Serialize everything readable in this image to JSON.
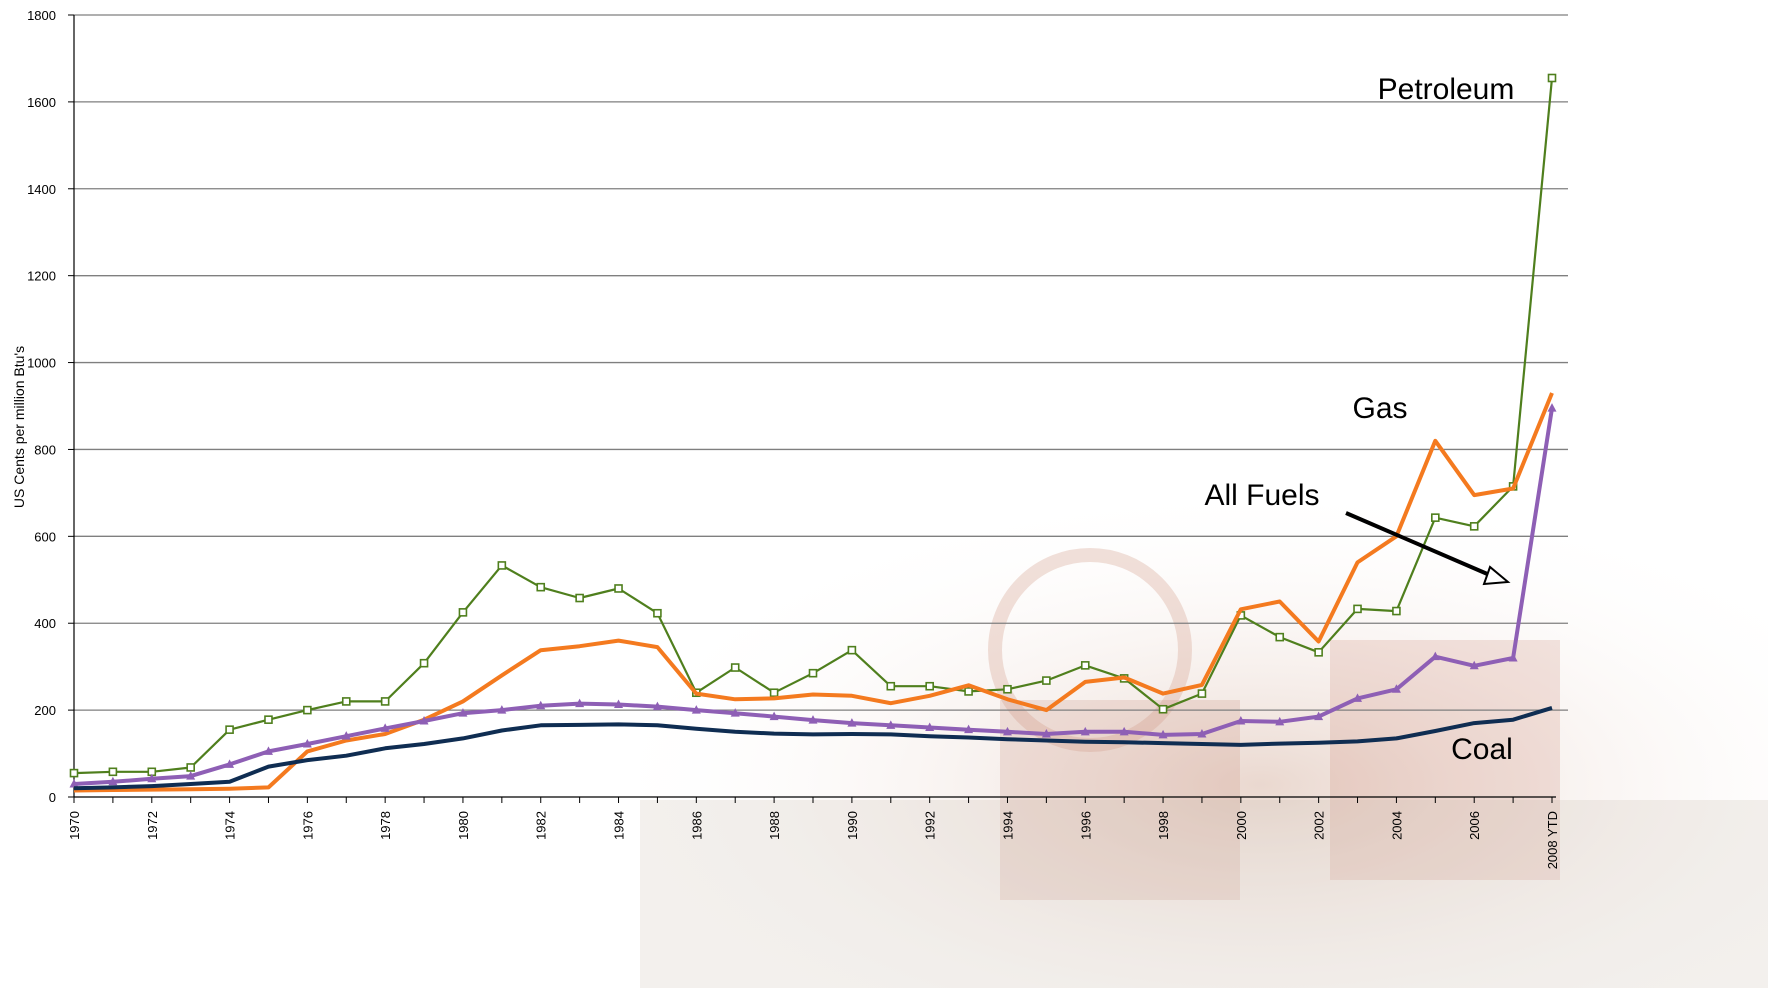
{
  "chart_data": {
    "type": "line",
    "ylabel": "US Cents per million Btu's",
    "ylim": [
      0,
      1800
    ],
    "yticks": [
      0,
      200,
      400,
      600,
      800,
      1000,
      1200,
      1400,
      1600,
      1800
    ],
    "grid": true,
    "x": [
      "1970",
      "1971",
      "1972",
      "1973",
      "1974",
      "1975",
      "1976",
      "1977",
      "1978",
      "1979",
      "1980",
      "1981",
      "1982",
      "1983",
      "1984",
      "1985",
      "1986",
      "1987",
      "1988",
      "1989",
      "1990",
      "1991",
      "1992",
      "1993",
      "1994",
      "1995",
      "1996",
      "1997",
      "1998",
      "1999",
      "2000",
      "2001",
      "2002",
      "2003",
      "2004",
      "2005",
      "2006",
      "2007",
      "2008 YTD"
    ],
    "xtick_labels": [
      "1970",
      "",
      "1972",
      "",
      "1974",
      "",
      "1976",
      "",
      "1978",
      "",
      "1980",
      "",
      "1982",
      "",
      "1984",
      "",
      "1986",
      "",
      "1988",
      "",
      "1990",
      "",
      "1992",
      "",
      "1994",
      "",
      "1996",
      "",
      "1998",
      "",
      "2000",
      "",
      "2002",
      "",
      "2004",
      "",
      "2006",
      "",
      "2008 YTD"
    ],
    "series": [
      {
        "name": "Petroleum",
        "color": "#4f7f1d",
        "marker": "square",
        "values": [
          55,
          58,
          58,
          68,
          155,
          178,
          200,
          220,
          220,
          308,
          425,
          533,
          483,
          458,
          480,
          423,
          240,
          298,
          240,
          285,
          338,
          255,
          255,
          243,
          248,
          268,
          303,
          273,
          202,
          238,
          418,
          368,
          333,
          433,
          428,
          643,
          623,
          715,
          1655
        ]
      },
      {
        "name": "Gas",
        "color": "#f47a1f",
        "marker": "none",
        "values": [
          15,
          16,
          17,
          18,
          19,
          22,
          105,
          130,
          145,
          178,
          220,
          280,
          338,
          347,
          360,
          345,
          238,
          225,
          227,
          236,
          233,
          216,
          233,
          257,
          225,
          200,
          265,
          275,
          238,
          258,
          432,
          450,
          358,
          540,
          600,
          820,
          695,
          710,
          930
        ]
      },
      {
        "name": "All Fuels",
        "color": "#8e5fb5",
        "marker": "triangle",
        "values": [
          30,
          35,
          42,
          48,
          75,
          105,
          122,
          140,
          158,
          175,
          193,
          200,
          210,
          215,
          213,
          208,
          200,
          193,
          185,
          177,
          170,
          165,
          160,
          155,
          150,
          145,
          150,
          150,
          143,
          145,
          175,
          173,
          185,
          227,
          248,
          323,
          302,
          320,
          895
        ]
      },
      {
        "name": "Coal",
        "color": "#0f2d52",
        "marker": "none",
        "values": [
          20,
          22,
          25,
          30,
          35,
          70,
          85,
          95,
          112,
          122,
          135,
          153,
          165,
          166,
          167,
          165,
          157,
          150,
          146,
          144,
          145,
          144,
          140,
          137,
          133,
          130,
          127,
          126,
          124,
          122,
          120,
          123,
          125,
          128,
          135,
          152,
          170,
          178,
          205
        ]
      }
    ]
  }
}
